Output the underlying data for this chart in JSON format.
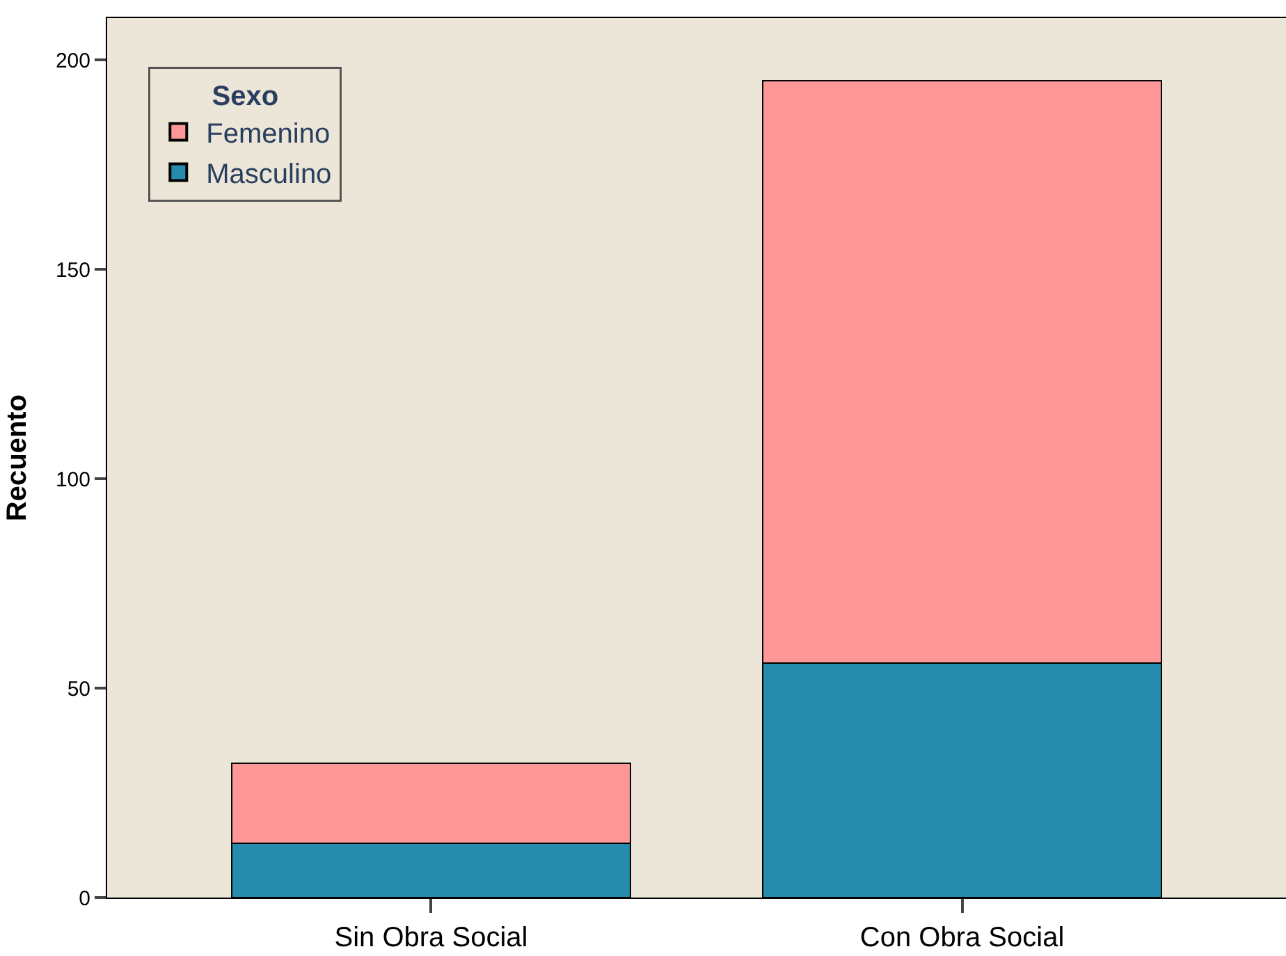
{
  "chart_data": {
    "type": "bar",
    "stacked": true,
    "categories": [
      "Sin Obra Social",
      "Con Obra Social"
    ],
    "series": [
      {
        "name": "Masculino",
        "color": "#268bad",
        "values": [
          13,
          56
        ]
      },
      {
        "name": "Femenino",
        "color": "#fe9898",
        "values": [
          19,
          139
        ]
      }
    ],
    "ylabel": "Recuento",
    "legend_title": "Sexo",
    "legend": "top left",
    "ylim": [
      0,
      210
    ],
    "yticks": [
      0,
      50,
      100,
      150,
      200
    ],
    "grid": false
  }
}
